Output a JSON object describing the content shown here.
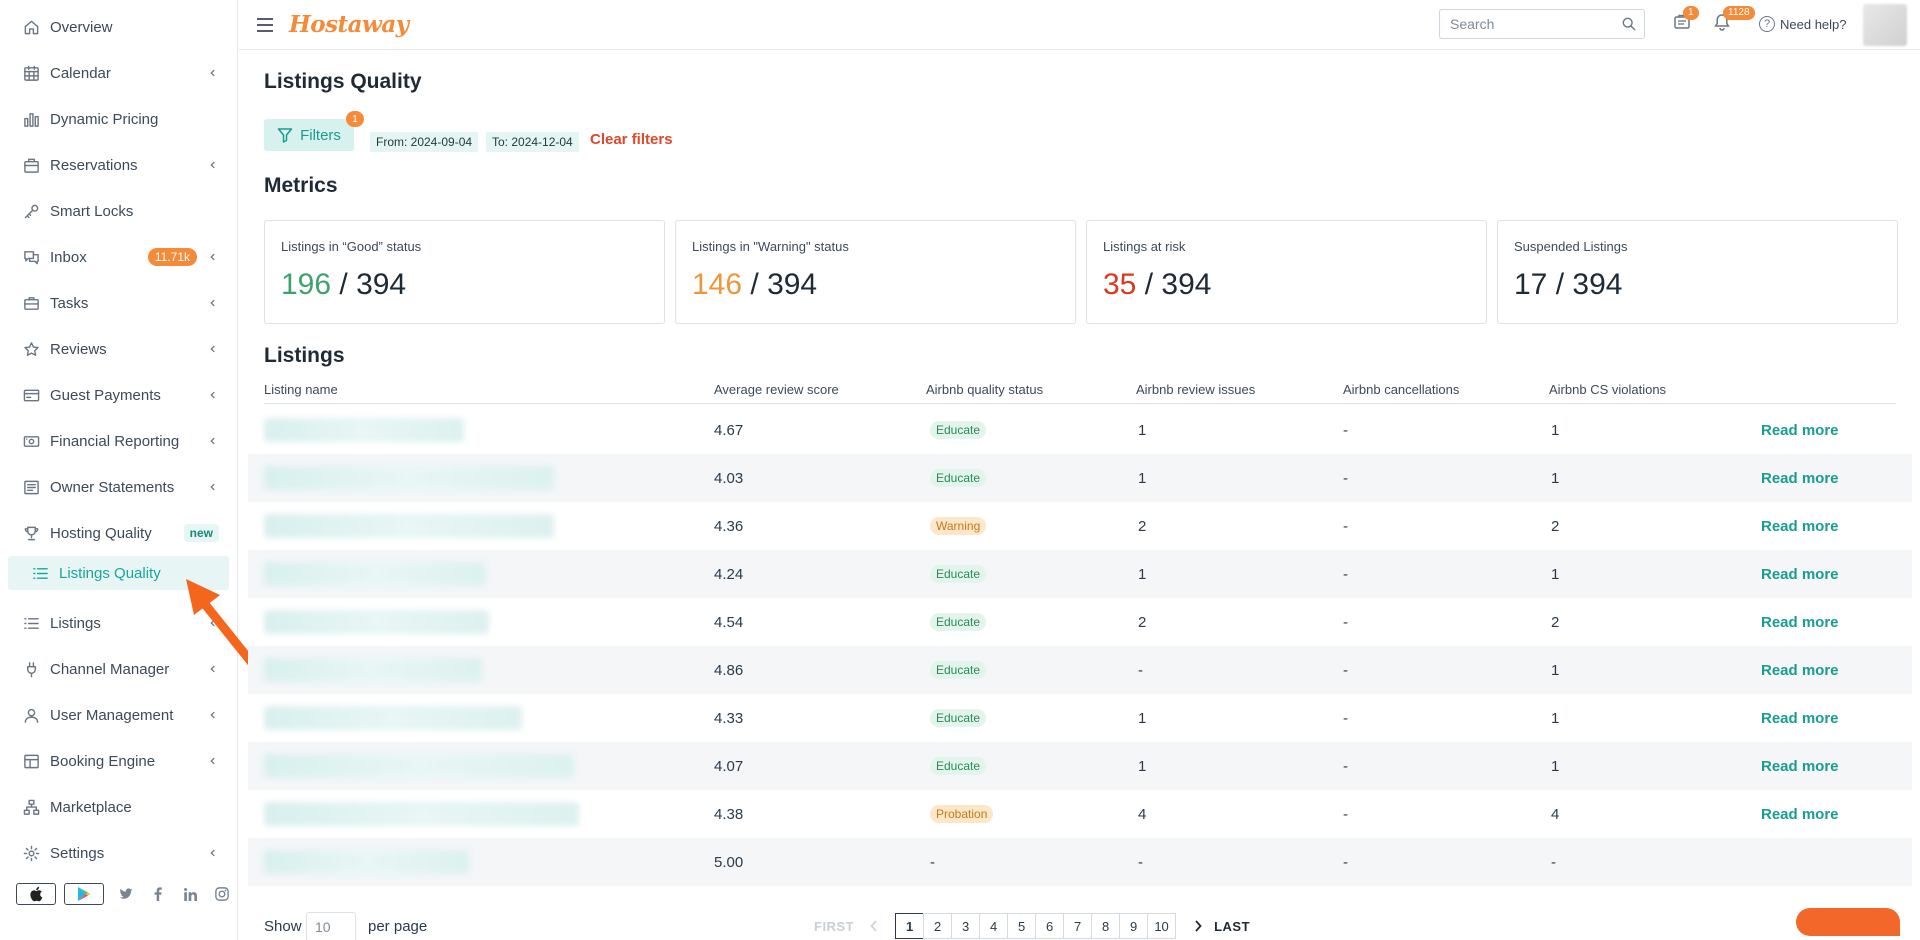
{
  "sidebar": {
    "items": [
      {
        "label": "Overview",
        "icon": "home-icon",
        "chevron": false
      },
      {
        "label": "Calendar",
        "icon": "calendar-icon",
        "chevron": true
      },
      {
        "label": "Dynamic Pricing",
        "icon": "bar-chart-icon",
        "chevron": false
      },
      {
        "label": "Reservations",
        "icon": "reservations-icon",
        "chevron": true
      },
      {
        "label": "Smart Locks",
        "icon": "key-icon",
        "chevron": false
      },
      {
        "label": "Inbox",
        "icon": "chat-icon",
        "chevron": true,
        "badge": "11.71k"
      },
      {
        "label": "Tasks",
        "icon": "briefcase-icon",
        "chevron": true
      },
      {
        "label": "Reviews",
        "icon": "star-icon",
        "chevron": true
      },
      {
        "label": "Guest Payments",
        "icon": "credit-card-icon",
        "chevron": true
      },
      {
        "label": "Financial Reporting",
        "icon": "money-icon",
        "chevron": true
      },
      {
        "label": "Owner Statements",
        "icon": "document-icon",
        "chevron": true
      },
      {
        "label": "Hosting Quality",
        "icon": "trophy-icon",
        "chevron": false,
        "badge_new": "new"
      }
    ],
    "active_sub": {
      "label": "Listings Quality",
      "icon": "list-icon"
    },
    "items_after": [
      {
        "label": "Listings",
        "icon": "list-icon",
        "chevron": true
      },
      {
        "label": "Channel Manager",
        "icon": "plug-icon",
        "chevron": true
      },
      {
        "label": "User Management",
        "icon": "user-icon",
        "chevron": true
      },
      {
        "label": "Booking Engine",
        "icon": "layout-icon",
        "chevron": true
      },
      {
        "label": "Marketplace",
        "icon": "marketplace-icon",
        "chevron": false
      },
      {
        "label": "Settings",
        "icon": "gear-icon",
        "chevron": true
      }
    ]
  },
  "topbar": {
    "logo": "Hostaway",
    "search_placeholder": "Search",
    "tasks_badge": "1",
    "notifications_badge": "1128",
    "help_label": "Need help?"
  },
  "page": {
    "title": "Listings Quality",
    "filters_label": "Filters",
    "filters_count": "1",
    "chip_from": "From: 2024-09-04",
    "chip_to": "To: 2024-12-04",
    "clear_filters": "Clear filters",
    "metrics_heading": "Metrics",
    "listings_heading": "Listings"
  },
  "metrics": [
    {
      "title": "Listings in “Good” status",
      "value": "196",
      "total": " / 394",
      "color": "#3ea36a"
    },
    {
      "title": "Listings in \"Warning\" status",
      "value": "146",
      "total": " / 394",
      "color": "#f0963a"
    },
    {
      "title": "Listings at risk",
      "value": "35",
      "total": " / 394",
      "color": "#d83a1f"
    },
    {
      "title": "Suspended Listings",
      "value": "17",
      "total": " / 394",
      "color": "#1f2a37"
    }
  ],
  "table": {
    "headers": [
      "Listing name",
      "Average review score",
      "Airbnb quality status",
      "Airbnb review issues",
      "Airbnb cancellations",
      "Airbnb CS violations"
    ],
    "read_more": "Read more",
    "rows": [
      {
        "score": "4.67",
        "status": "Educate",
        "status_kind": "educate",
        "review_issues": "1",
        "cancellations": "-",
        "cs_violations": "1",
        "read_more": true
      },
      {
        "score": "4.03",
        "status": "Educate",
        "status_kind": "educate",
        "review_issues": "1",
        "cancellations": "-",
        "cs_violations": "1",
        "read_more": true
      },
      {
        "score": "4.36",
        "status": "Warning",
        "status_kind": "warning",
        "review_issues": "2",
        "cancellations": "-",
        "cs_violations": "2",
        "read_more": true
      },
      {
        "score": "4.24",
        "status": "Educate",
        "status_kind": "educate",
        "review_issues": "1",
        "cancellations": "-",
        "cs_violations": "1",
        "read_more": true
      },
      {
        "score": "4.54",
        "status": "Educate",
        "status_kind": "educate",
        "review_issues": "2",
        "cancellations": "-",
        "cs_violations": "2",
        "read_more": true
      },
      {
        "score": "4.86",
        "status": "Educate",
        "status_kind": "educate",
        "review_issues": "-",
        "cancellations": "-",
        "cs_violations": "1",
        "read_more": true
      },
      {
        "score": "4.33",
        "status": "Educate",
        "status_kind": "educate",
        "review_issues": "1",
        "cancellations": "-",
        "cs_violations": "1",
        "read_more": true
      },
      {
        "score": "4.07",
        "status": "Educate",
        "status_kind": "educate",
        "review_issues": "1",
        "cancellations": "-",
        "cs_violations": "1",
        "read_more": true
      },
      {
        "score": "4.38",
        "status": "Probation",
        "status_kind": "probation",
        "review_issues": "4",
        "cancellations": "-",
        "cs_violations": "4",
        "read_more": true
      },
      {
        "score": "5.00",
        "status": "-",
        "status_kind": "none",
        "review_issues": "-",
        "cancellations": "-",
        "cs_violations": "-",
        "read_more": false
      }
    ]
  },
  "footer": {
    "show": "Show",
    "per_page_value": "10",
    "per_page": "per page",
    "first": "FIRST",
    "last": "LAST",
    "pages": [
      "1",
      "2",
      "3",
      "4",
      "5",
      "6",
      "7",
      "8",
      "9",
      "10"
    ],
    "current_page": "1"
  }
}
